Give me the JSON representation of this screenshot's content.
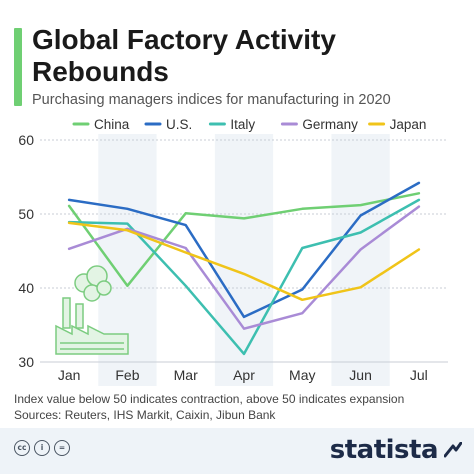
{
  "header": {
    "title": "Global Factory Activity Rebounds",
    "subtitle": "Purchasing managers indices for manufacturing in 2020",
    "accent_color": "#6fcf73"
  },
  "chart_data": {
    "type": "line",
    "title": "Global Factory Activity Rebounds",
    "subtitle": "Purchasing managers indices for manufacturing in 2020",
    "xlabel": "",
    "ylabel": "",
    "categories": [
      "Jan",
      "Feb",
      "Mar",
      "Apr",
      "May",
      "Jun",
      "Jul"
    ],
    "ylim": [
      30,
      60
    ],
    "yticks": [
      30,
      40,
      50,
      60
    ],
    "grid": true,
    "legend_position": "top",
    "series": [
      {
        "name": "China",
        "color": "#6fcf73",
        "values": [
          51.1,
          40.3,
          50.1,
          49.4,
          50.7,
          51.2,
          52.8
        ]
      },
      {
        "name": "U.S.",
        "color": "#2b6cc4",
        "values": [
          51.9,
          50.7,
          48.5,
          36.1,
          39.8,
          49.8,
          54.2
        ]
      },
      {
        "name": "Italy",
        "color": "#3dbfb0",
        "values": [
          48.9,
          48.7,
          40.3,
          31.1,
          45.4,
          47.5,
          51.9
        ]
      },
      {
        "name": "Germany",
        "color": "#a98bd6",
        "values": [
          45.3,
          48.0,
          45.4,
          34.5,
          36.6,
          45.2,
          51.0
        ]
      },
      {
        "name": "Japan",
        "color": "#f0c419",
        "values": [
          48.8,
          47.8,
          44.8,
          41.9,
          38.4,
          40.1,
          45.2
        ]
      }
    ]
  },
  "notes": {
    "line1": "Index value below 50 indicates contraction, above 50 indicates expansion",
    "line2": "Sources: Reuters, IHS Markit, Caixin, Jibun Bank"
  },
  "footer": {
    "brand": "statista",
    "icons": [
      "creative-commons-icon",
      "attribution-icon",
      "no-derivatives-icon"
    ]
  }
}
